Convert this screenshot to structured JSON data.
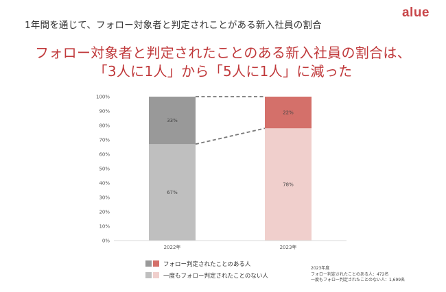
{
  "header": {
    "title": "1年間を通じて、フォロー対象者と判定されことがある新入社員の割合"
  },
  "brand": {
    "logo_text": "alue"
  },
  "headline": {
    "line1": "フォロー対象者と判定されたことのある新入社員の割合は、",
    "line2": "「3人に1人」から「5人に1人」に減った"
  },
  "chart_data": {
    "type": "bar",
    "stacked": true,
    "categories": [
      "2022年",
      "2023年"
    ],
    "yticks": [
      "0%",
      "10%",
      "20%",
      "30%",
      "40%",
      "50%",
      "60%",
      "70%",
      "80%",
      "90%",
      "100%"
    ],
    "ylim": [
      0,
      100
    ],
    "series": [
      {
        "name": "一度もフォロー判定されたことのない人",
        "values": [
          67,
          78
        ],
        "labels": [
          "67%",
          "78%"
        ],
        "colors": [
          "#bfbfbf",
          "#f0cfcc"
        ]
      },
      {
        "name": "フォロー判定されたことのある人",
        "values": [
          33,
          22
        ],
        "labels": [
          "33%",
          "22%"
        ],
        "colors": [
          "#999999",
          "#d4706a"
        ]
      }
    ],
    "connector_lines": true,
    "grid": false
  },
  "legend": {
    "items": [
      {
        "label": "フォロー判定されたことのある人",
        "colors": [
          "#999999",
          "#d4706a"
        ]
      },
      {
        "label": "一度もフォロー判定されたことのない人",
        "colors": [
          "#bfbfbf",
          "#f0cfcc"
        ]
      }
    ]
  },
  "footnote": {
    "year": "2023年度",
    "line1": "フォロー判定されたことのある人：472名",
    "line2": "一度もフォロー判定されたことのない人：1,699名"
  }
}
